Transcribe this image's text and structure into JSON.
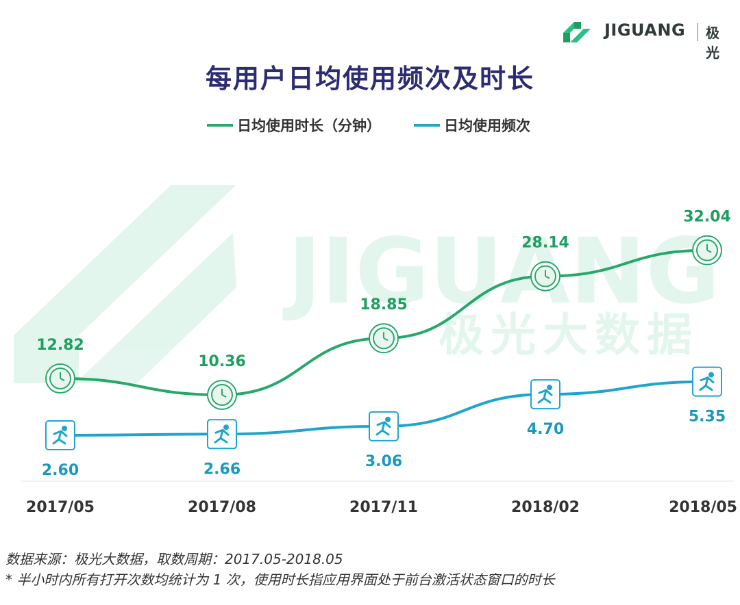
{
  "brand": {
    "name": "JIGUANG",
    "name_cn": "极光",
    "watermark_latin": "JIGUANG",
    "watermark_cn": "极光大数据"
  },
  "colors": {
    "duration": "#27a86b",
    "frequency": "#1fa5cc",
    "title": "#2c2c72"
  },
  "chart_data": {
    "type": "line",
    "title": "每用户日均使用频次及时长",
    "categories": [
      "2017/05",
      "2017/08",
      "2017/11",
      "2018/02",
      "2018/05"
    ],
    "series": [
      {
        "name": "日均使用时长（分钟）",
        "values": [
          12.82,
          10.36,
          18.85,
          28.14,
          32.04
        ],
        "labels": [
          "12.82",
          "10.36",
          "18.85",
          "28.14",
          "32.04"
        ],
        "marker": "clock-icon"
      },
      {
        "name": "日均使用频次",
        "values": [
          2.6,
          2.66,
          3.06,
          4.7,
          5.35
        ],
        "labels": [
          "2.60",
          "2.66",
          "3.06",
          "4.70",
          "5.35"
        ],
        "marker": "runner-icon"
      }
    ],
    "legend": "top-center",
    "grid": false,
    "smooth": true
  },
  "notes": {
    "source": "数据来源：极光大数据，取数周期：2017.05-2018.05",
    "footnote": "* 半小时内所有打开次数均统计为 1 次，使用时长指应用界面处于前台激活状态窗口的时长"
  }
}
